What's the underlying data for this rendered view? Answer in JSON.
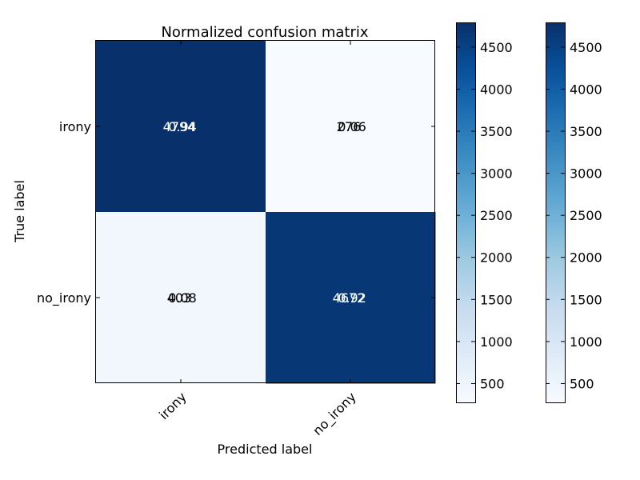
{
  "chart_data": {
    "type": "heatmap",
    "title": "Normalized confusion matrix",
    "xlabel": "Predicted label",
    "ylabel": "True label",
    "x_categories": [
      "irony",
      "no_irony"
    ],
    "y_categories": [
      "irony",
      "no_irony"
    ],
    "values": [
      [
        4794,
        276
      ],
      [
        403,
        4672
      ]
    ],
    "normalized_values": [
      [
        0.94,
        0.06
      ],
      [
        0.08,
        0.92
      ]
    ],
    "cell_labels": [
      [
        [
          "4794",
          "0.94"
        ],
        [
          "276",
          "0.06"
        ]
      ],
      [
        [
          "403",
          "0.08"
        ],
        [
          "4672",
          "0.92"
        ]
      ]
    ],
    "colormap": "Blues",
    "grid": false,
    "colorbars": [
      {
        "range": [
          276,
          4794
        ],
        "ticks": [
          "500",
          "1000",
          "1500",
          "2000",
          "2500",
          "3000",
          "3500",
          "4000",
          "4500"
        ]
      },
      {
        "range": [
          276,
          4794
        ],
        "ticks": [
          "500",
          "1000",
          "1500",
          "2000",
          "2500",
          "3000",
          "3500",
          "4000",
          "4500"
        ]
      }
    ]
  }
}
